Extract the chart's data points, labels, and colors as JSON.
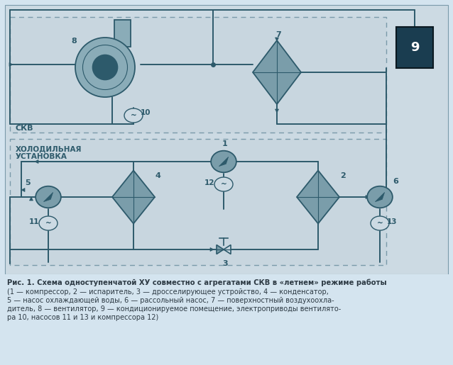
{
  "bg_outer": "#d4e4ef",
  "bg_diagram": "#ccdae3",
  "bg_box": "#c8d6df",
  "bg_white": "#ffffff",
  "line_color": "#2d5a6b",
  "comp_fill": "#7a9daa",
  "comp_dark": "#2d5a6b",
  "comp_mid": "#8aacb8",
  "room_fill": "#1a3d50",
  "room_text": "#ffffff",
  "text_color": "#2d3a44",
  "border_color": "#7a9aaa",
  "title_bold": "Рис. 1. Схема одноступенчатой ХУ совместно с агрегатами СКВ в «летнем» режиме работы",
  "cap1": "(1 — компрессор, 2 — испаритель, 3 — дросселирующее устройство, 4 — конденсатор,",
  "cap2": "5 — насос охлаждающей воды, 6 — рассольный насос, 7 — поверхностный воздухоохла-",
  "cap3": "дитель, 8 — вентилятор, 9 — кондиционируемое помещение, электроприводы вентилято-",
  "cap4": "ра 10, насосов 11 и 13 и компрессора 12)",
  "skv_label": "СКВ",
  "hu_label1": "ХОЛОДИЛЬНАЯ",
  "hu_label2": "УСТАНОВКА"
}
